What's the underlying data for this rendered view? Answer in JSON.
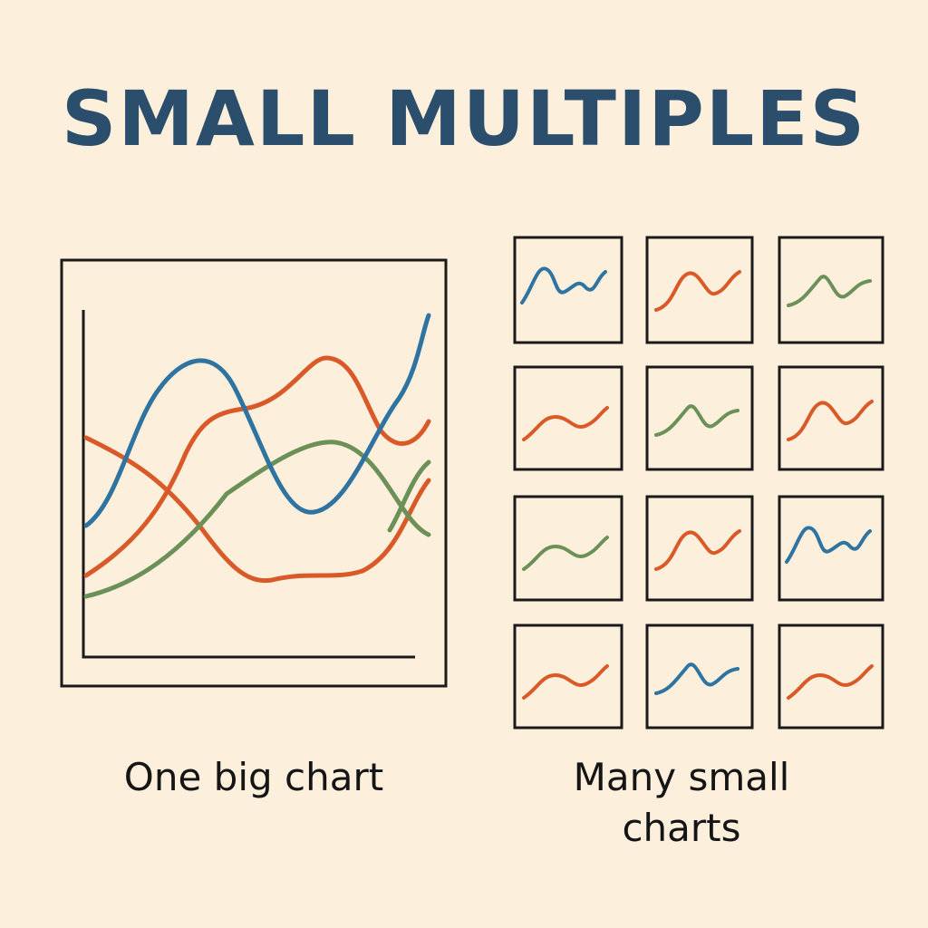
{
  "header": {
    "title": "SMALL MULTIPLES"
  },
  "captions": {
    "left": "One big chart",
    "right": "Many small charts"
  }
}
